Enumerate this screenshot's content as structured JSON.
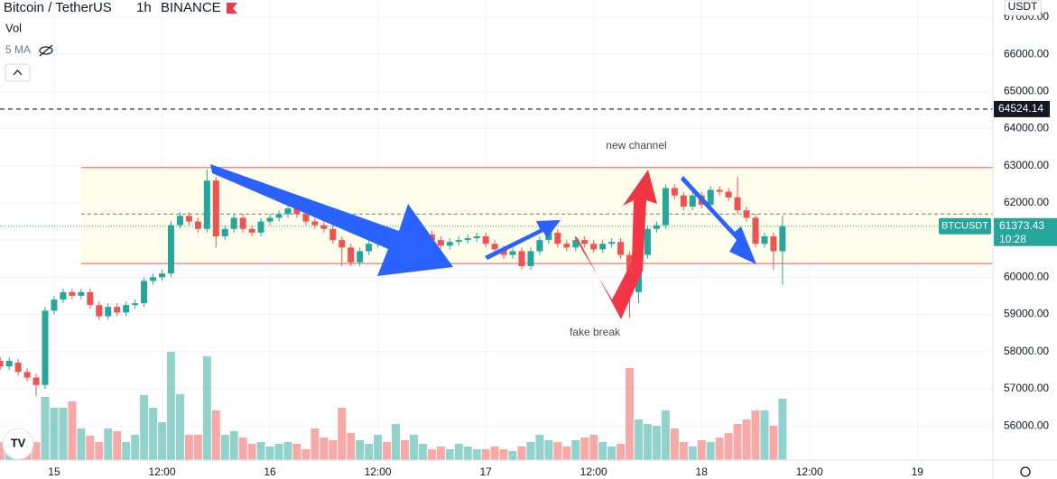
{
  "chart_data": {
    "type": "candlestick",
    "symbol": "Bitcoin / TetherUS",
    "interval": "1h",
    "exchange": "BINANCE",
    "volume_title": "Vol",
    "ma_label": "5 MA",
    "currency": "USDT",
    "ticker": "BTCUSDT",
    "last_price": 61373.43,
    "countdown": "10:28",
    "alert_level": 64524.14,
    "channel_top": 62950,
    "channel_bottom": 60370,
    "channel_mid": 61700,
    "annotations": [
      "new channel",
      "fake break"
    ],
    "up_color": "#26a69a",
    "down_color": "#ef5350",
    "grid": true,
    "xlim": [
      -6.02,
      104.4
    ],
    "xticks": [
      {
        "value": 0,
        "label": "15"
      },
      {
        "value": 12,
        "label": "12:00"
      },
      {
        "value": 24,
        "label": "16"
      },
      {
        "value": 36,
        "label": "12:00"
      },
      {
        "value": 48,
        "label": "17"
      },
      {
        "value": 60,
        "label": "12:00"
      },
      {
        "value": 72,
        "label": "18"
      },
      {
        "value": 84,
        "label": "12:00"
      },
      {
        "value": 96,
        "label": "19"
      }
    ],
    "ylim": [
      55080,
      67460
    ],
    "yticks": [
      {
        "value": 56000,
        "label": "56000.00"
      },
      {
        "value": 57000,
        "label": "57000.00"
      },
      {
        "value": 58000,
        "label": "58000.00"
      },
      {
        "value": 59000,
        "label": "59000.00"
      },
      {
        "value": 60000,
        "label": "60000.00"
      },
      {
        "value": 61000,
        "label": "61000.00"
      },
      {
        "value": 62000,
        "label": "62000.00"
      },
      {
        "value": 63000,
        "label": "63000.00"
      },
      {
        "value": 64000,
        "label": "64000.00"
      },
      {
        "value": 65000,
        "label": "65000.00"
      },
      {
        "value": 66000,
        "label": "66000.00"
      },
      {
        "value": 67000,
        "label": "67000.00"
      }
    ],
    "y2lim": [
      0,
      510
    ],
    "x": [
      -6,
      -5,
      -4,
      -3,
      -2,
      -1,
      0,
      1,
      2,
      3,
      4,
      5,
      6,
      7,
      8,
      9,
      10,
      11,
      12,
      13,
      14,
      15,
      16,
      17,
      18,
      19,
      20,
      21,
      22,
      23,
      24,
      25,
      26,
      27,
      28,
      29,
      30,
      31,
      32,
      33,
      34,
      35,
      36,
      37,
      38,
      39,
      40,
      41,
      42,
      43,
      44,
      45,
      46,
      47,
      48,
      49,
      50,
      51,
      52,
      53,
      54,
      55,
      56,
      57,
      58,
      59,
      60,
      61,
      62,
      63,
      64,
      65,
      66,
      67,
      68,
      69,
      70,
      71,
      72,
      73,
      74,
      75,
      76,
      77,
      78,
      79,
      80,
      81
    ],
    "open": [
      57750,
      57600,
      57700,
      57450,
      57300,
      57100,
      59100,
      59400,
      59600,
      59500,
      59600,
      59250,
      58950,
      59200,
      59050,
      59250,
      59300,
      59900,
      60000,
      60100,
      61400,
      61650,
      61500,
      61300,
      62600,
      61100,
      61300,
      61600,
      61300,
      61200,
      61500,
      61600,
      61700,
      61850,
      61700,
      61500,
      61400,
      61300,
      61000,
      60800,
      60400,
      60700,
      60900,
      61000,
      60900,
      61100,
      60950,
      61100,
      61150,
      61000,
      60850,
      60950,
      61000,
      61050,
      61100,
      60900,
      60750,
      60600,
      60700,
      60300,
      60700,
      61000,
      61200,
      60900,
      60800,
      61000,
      60900,
      60750,
      60900,
      60950,
      60600,
      59600,
      60600,
      61300,
      61400,
      62400,
      62200,
      61900,
      62200,
      61950,
      62350,
      62300,
      62150,
      61800,
      61600,
      60900,
      61100,
      60700
    ],
    "high": [
      57850,
      57850,
      57800,
      57550,
      57400,
      59200,
      59500,
      59700,
      59700,
      59700,
      59700,
      59350,
      59300,
      59300,
      59350,
      59400,
      60000,
      60100,
      60200,
      61500,
      61750,
      61750,
      61600,
      62900,
      62700,
      61400,
      61700,
      61700,
      61400,
      61600,
      61700,
      61800,
      61950,
      61950,
      61800,
      61600,
      61500,
      61400,
      61100,
      60900,
      60800,
      61000,
      61100,
      61100,
      61200,
      61200,
      61200,
      61250,
      61250,
      61100,
      61050,
      61100,
      61150,
      61200,
      61200,
      61000,
      60850,
      60800,
      60800,
      60800,
      61100,
      61300,
      61300,
      61000,
      61100,
      61100,
      61000,
      61000,
      61050,
      61050,
      60700,
      60700,
      61400,
      61500,
      62500,
      62500,
      62300,
      62300,
      62300,
      62450,
      62450,
      62400,
      62700,
      61900,
      61700,
      61200,
      61200,
      61650
    ],
    "low": [
      57500,
      57500,
      57350,
      57200,
      56800,
      57000,
      59000,
      59300,
      59400,
      59400,
      59150,
      58850,
      58850,
      58950,
      58950,
      59150,
      59200,
      59800,
      59900,
      60000,
      61300,
      61400,
      61200,
      61200,
      60800,
      61000,
      61200,
      61200,
      61100,
      61100,
      61400,
      61500,
      61600,
      61600,
      61400,
      61300,
      61200,
      60900,
      60300,
      60300,
      60300,
      60600,
      60800,
      60800,
      60800,
      60850,
      60850,
      61000,
      60900,
      60750,
      60750,
      60850,
      60900,
      60950,
      60800,
      60650,
      60500,
      60500,
      60200,
      60200,
      60600,
      60900,
      60800,
      60700,
      60700,
      60800,
      60650,
      60650,
      60800,
      60500,
      58900,
      59300,
      60500,
      61200,
      61300,
      62100,
      61800,
      61800,
      61850,
      61850,
      62200,
      62050,
      61700,
      61500,
      60800,
      60800,
      60200,
      59800
    ],
    "close": [
      57600,
      57750,
      57450,
      57300,
      57100,
      59100,
      59400,
      59600,
      59500,
      59600,
      59250,
      58950,
      59200,
      59050,
      59250,
      59300,
      59900,
      60000,
      60100,
      61400,
      61650,
      61500,
      61300,
      62600,
      61100,
      61300,
      61600,
      61300,
      61200,
      61500,
      61600,
      61700,
      61850,
      61700,
      61500,
      61400,
      61300,
      61000,
      60800,
      60400,
      60700,
      60900,
      61000,
      60900,
      61100,
      60950,
      61100,
      61150,
      61000,
      60850,
      60950,
      61000,
      61050,
      61100,
      60900,
      60750,
      60600,
      60700,
      60300,
      60700,
      61000,
      61200,
      60900,
      60800,
      61000,
      60900,
      60750,
      60900,
      60950,
      60600,
      59600,
      60600,
      61300,
      61400,
      62400,
      62200,
      61900,
      62200,
      61950,
      62350,
      62300,
      62150,
      61800,
      61600,
      60900,
      61100,
      60700,
      61373.43
    ],
    "volume": [
      20,
      18,
      22,
      25,
      20,
      70,
      58,
      58,
      65,
      35,
      27,
      20,
      35,
      32,
      20,
      28,
      72,
      58,
      42,
      120,
      73,
      28,
      28,
      115,
      55,
      28,
      32,
      25,
      18,
      20,
      15,
      18,
      20,
      18,
      12,
      35,
      25,
      22,
      58,
      30,
      22,
      18,
      28,
      20,
      40,
      22,
      28,
      18,
      12,
      15,
      12,
      18,
      15,
      12,
      12,
      15,
      12,
      10,
      15,
      20,
      28,
      22,
      20,
      15,
      22,
      25,
      28,
      20,
      15,
      18,
      102,
      45,
      40,
      38,
      55,
      35,
      20,
      15,
      22,
      20,
      25,
      30,
      40,
      45,
      55,
      55,
      38,
      68
    ]
  }
}
